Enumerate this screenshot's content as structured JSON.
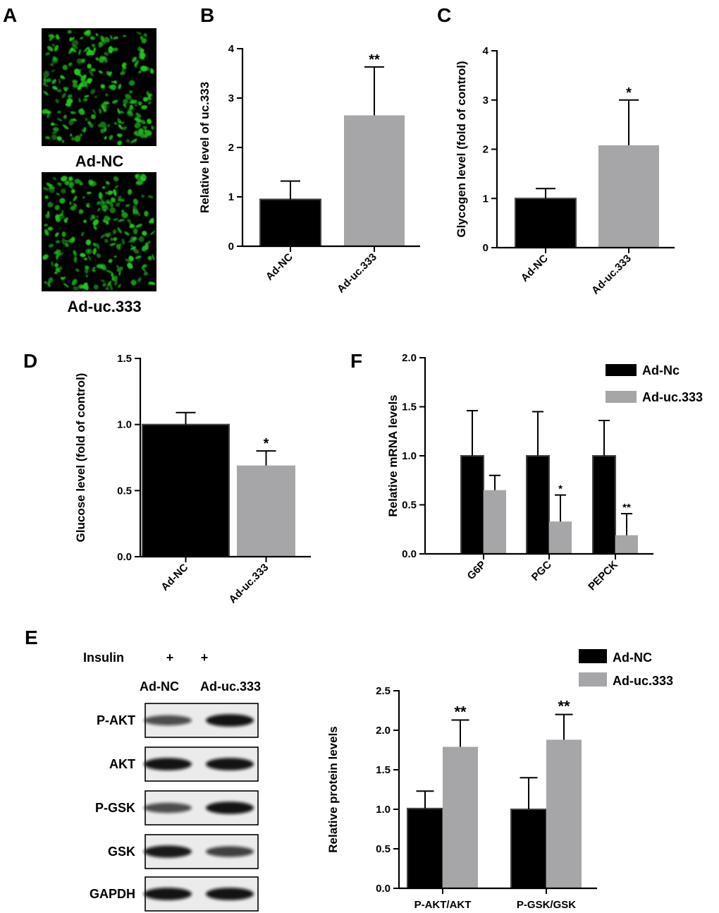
{
  "panels": {
    "A": {
      "letter": "A",
      "image_labels": [
        "Ad-NC",
        "Ad-uc.333"
      ]
    },
    "B": {
      "letter": "B"
    },
    "C": {
      "letter": "C"
    },
    "D": {
      "letter": "D"
    },
    "E": {
      "letter": "E",
      "treatment_label": "Insulin",
      "treatment_marks": [
        "+",
        "+"
      ],
      "lane_labels": [
        "Ad-NC",
        "Ad-uc.333"
      ],
      "blot_rows": [
        "P-AKT",
        "AKT",
        "P-GSK",
        "GSK",
        "GAPDH"
      ]
    },
    "F": {
      "letter": "F"
    }
  },
  "colors": {
    "black_bar": "#000000",
    "gray_bar": "#a6a6a8",
    "fluorescence": "#22c81e"
  },
  "chart_data": [
    {
      "id": "B",
      "type": "bar",
      "categories": [
        "Ad-NC",
        "Ad-uc.333"
      ],
      "values": [
        0.95,
        2.65
      ],
      "errors": [
        0.37,
        0.98
      ],
      "significance": [
        "",
        "**"
      ],
      "bar_colors": [
        "#000000",
        "#a6a6a8"
      ],
      "ylabel": "Relative level of uc.333",
      "ylim": [
        0,
        4
      ],
      "yticks": [
        "0",
        "1",
        "2",
        "3",
        "4"
      ]
    },
    {
      "id": "C",
      "type": "bar",
      "categories": [
        "Ad-NC",
        "Ad-uc.333"
      ],
      "values": [
        1.0,
        2.08
      ],
      "errors": [
        0.2,
        0.92
      ],
      "significance": [
        "",
        "*"
      ],
      "bar_colors": [
        "#000000",
        "#a6a6a8"
      ],
      "ylabel": "Glycogen level (fold of control)",
      "ylim": [
        0,
        4
      ],
      "yticks": [
        "0",
        "1",
        "2",
        "3",
        "4"
      ]
    },
    {
      "id": "D",
      "type": "bar",
      "categories": [
        "Ad-NC",
        "Ad-uc.333"
      ],
      "values": [
        1.0,
        0.69
      ],
      "errors": [
        0.09,
        0.11
      ],
      "significance": [
        "",
        "*"
      ],
      "bar_colors": [
        "#000000",
        "#a6a6a8"
      ],
      "ylabel": "Glucose level (fold of control)",
      "ylim": [
        0,
        1.5
      ],
      "yticks": [
        "0.0",
        "0.5",
        "1.0",
        "1.5"
      ]
    },
    {
      "id": "F",
      "type": "bar",
      "categories": [
        "G6P",
        "PGC",
        "PEPCK"
      ],
      "series": [
        {
          "name": "Ad-Nc",
          "values": [
            1.0,
            1.0,
            1.0
          ],
          "errors": [
            0.46,
            0.45,
            0.36
          ],
          "significance": [
            "",
            "",
            ""
          ]
        },
        {
          "name": "Ad-uc.333",
          "values": [
            0.65,
            0.33,
            0.19
          ],
          "errors": [
            0.15,
            0.27,
            0.22
          ],
          "significance": [
            "",
            "*",
            "**"
          ]
        }
      ],
      "ylabel": "Relative mRNA levels",
      "ylim": [
        0,
        2.0
      ],
      "yticks": [
        "0.0",
        "0.5",
        "1.0",
        "1.5",
        "2.0"
      ],
      "legend": "top-right"
    },
    {
      "id": "E-quant",
      "type": "bar",
      "categories": [
        "P-AKT/AKT",
        "P-GSK/GSK"
      ],
      "series": [
        {
          "name": "Ad-NC",
          "values": [
            1.01,
            1.0
          ],
          "errors": [
            0.22,
            0.4
          ],
          "significance": [
            "",
            ""
          ]
        },
        {
          "name": "Ad-uc.333",
          "values": [
            1.79,
            1.88
          ],
          "errors": [
            0.34,
            0.32
          ],
          "significance": [
            "**",
            "**"
          ]
        }
      ],
      "ylabel": "Relative protein levels",
      "ylim": [
        0,
        2.5
      ],
      "yticks": [
        "0.0",
        "0.5",
        "1.0",
        "1.5",
        "2.0",
        "2.5"
      ],
      "legend": "top-right"
    }
  ]
}
